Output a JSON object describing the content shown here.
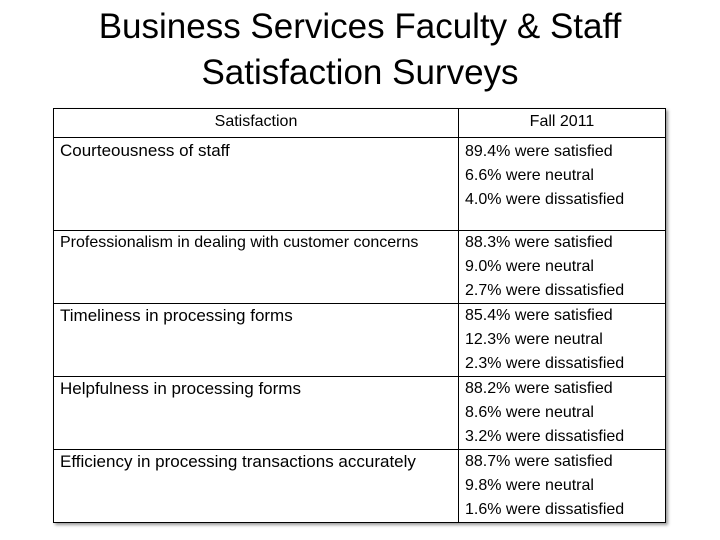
{
  "title_lines": [
    "Business Services Faculty & Staff",
    "Satisfaction Surveys"
  ],
  "table": {
    "header": [
      "Satisfaction",
      "Fall 2011"
    ],
    "rows": [
      {
        "item": "Courteousness of staff",
        "results": [
          "89.4% were satisfied",
          "6.6% were neutral",
          "4.0% were dissatisfied"
        ]
      },
      {
        "item": "Professionalism in dealing with customer concerns",
        "results": [
          "88.3% were satisfied",
          "9.0% were neutral",
          "2.7% were dissatisfied"
        ]
      },
      {
        "item": "Timeliness in processing forms",
        "results": [
          "85.4% were satisfied",
          "12.3% were neutral",
          "2.3% were dissatisfied"
        ]
      },
      {
        "item": "Helpfulness in processing forms",
        "results": [
          "88.2% were satisfied",
          "8.6% were neutral",
          "3.2% were dissatisfied"
        ]
      },
      {
        "item": "Efficiency in processing transactions accurately",
        "results": [
          "88.7% were satisfied",
          "9.8% were neutral",
          "1.6% were dissatisfied"
        ]
      }
    ]
  }
}
